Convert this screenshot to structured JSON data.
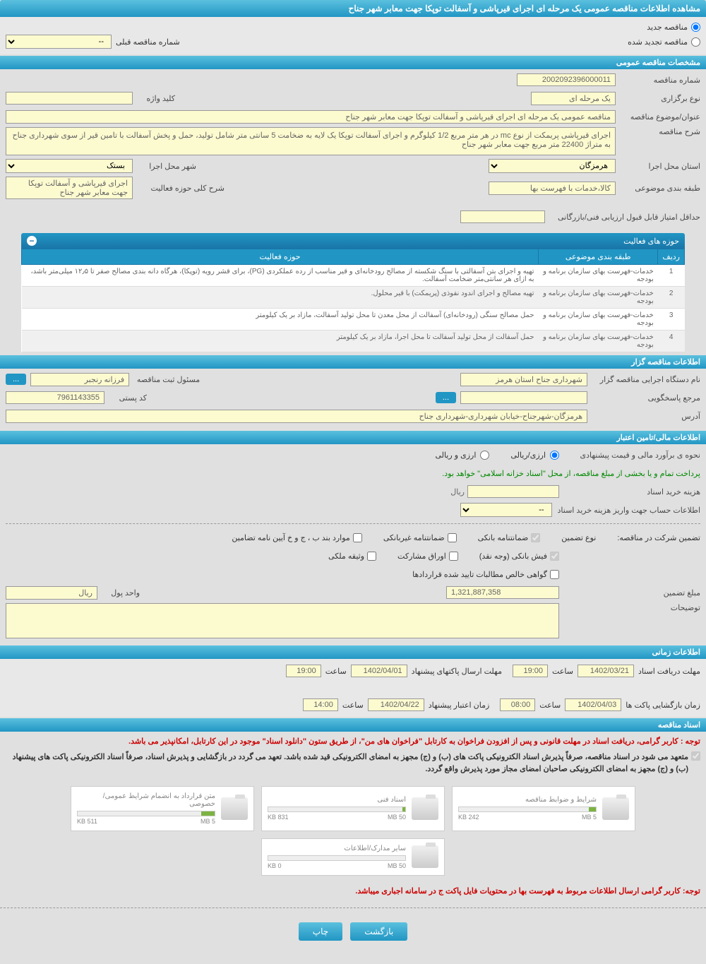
{
  "colors": {
    "header_bg": "#2196c4",
    "yellow_bg": "#fcfacf",
    "page_bg": "#e0e0e0",
    "red": "#cc0000"
  },
  "main_title": "مشاهده اطلاعات مناقصه عمومی یک مرحله ای اجرای قیرپاشی و آسفالت توپکا جهت معابر شهر جناح",
  "tender_type": {
    "new": "مناقصه جدید",
    "renewed": "مناقصه تجدید شده",
    "prev_number_label": "شماره مناقصه قبلی",
    "prev_number_value": "--"
  },
  "general_specs": {
    "header": "مشخصات مناقصه عمومی",
    "tender_number_label": "شماره مناقصه",
    "tender_number": "2002092396000011",
    "holding_type_label": "نوع برگزاری",
    "holding_type": "یک مرحله ای",
    "keyword_label": "کلید واژه",
    "keyword": "",
    "title_label": "عنوان/موضوع مناقصه",
    "title": "مناقصه عمومی یک مرحله ای اجرای قیرپاشی و آسفالت توپکا جهت معابر شهر جناح",
    "desc_label": "شرح مناقصه",
    "desc": "اجرای قیرپاشی پریمکت از نوع mc در هر متر مربع 1/2 کیلوگرم و اجرای آسفالت توپکا یک لایه به ضخامت 5 سانتی متر شامل تولید، حمل و پخش آسفالت با تامین قیر از سوی شهرداری جناح به متراژ 22400 متر مربع جهت معابر شهر جناح",
    "province_label": "استان محل اجرا",
    "province": "هرمزگان",
    "city_label": "شهر محل اجرا",
    "city": "بستک",
    "category_label": "طبقه بندی موضوعی",
    "category": "کالا،خدمات با فهرست بها",
    "activity_desc_label": "شرح کلی حوزه فعالیت",
    "activity_desc": "اجرای قیرپاشی و آسفالت توپکا جهت معابر شهر جناح",
    "min_score_label": "حداقل امتیاز قابل قبول ارزیابی فنی/بازرگانی",
    "min_score": ""
  },
  "activity_table": {
    "header": "حوزه های فعالیت",
    "columns": [
      "ردیف",
      "طبقه بندی موضوعی",
      "حوزه فعالیت"
    ],
    "rows": [
      [
        "1",
        "خدمات-فهرست بهای سازمان برنامه و بودجه",
        "تهیه و اجرای بتن آسفالتی با سنگ شکسته از مصالح رودخانه‌ای و قیر مناسب از رده عملکردی (PG)، برای قشر رویه (توپکا)، هرگاه دانه بندی مصالح صفر تا ۱۲٫۵ میلی‌متر باشد، به ازای هر سانتی‌متر ضخامت آسفالت."
      ],
      [
        "2",
        "خدمات-فهرست بهای سازمان برنامه و بودجه",
        "تهیه مصالح و اجرای اندود نفوذی (پریمکت) با قیر محلول."
      ],
      [
        "3",
        "خدمات-فهرست بهای سازمان برنامه و بودجه",
        "حمل مصالح سنگی (رودخانه‌ای) آسفالت از محل معدن تا محل تولید آسفالت، مازاد بر یک کیلومتر"
      ],
      [
        "4",
        "خدمات-فهرست بهای سازمان برنامه و بودجه",
        "حمل آسفالت از محل تولید آسفالت تا محل اجرا، مازاد بر یک کیلومتر"
      ]
    ]
  },
  "organizer": {
    "header": "اطلاعات مناقصه گزار",
    "org_label": "نام دستگاه اجرایی مناقصه گزار",
    "org": "شهرداری جناح استان هرمز",
    "manager_label": "مسئول ثبت مناقصه",
    "manager": "فرزانه رنجبر",
    "accountability_label": "مرجع پاسخگویی",
    "accountability": "",
    "postal_label": "کد پستی",
    "postal": "7961143355",
    "address_label": "آدرس",
    "address": "هرمزگان-شهرجناح-خیابان شهرداری-شهرداری جناح"
  },
  "financial": {
    "header": "اطلاعات مالی/تامین اعتبار",
    "estimate_label": "نحوه ی برآورد مالی و قیمت پیشنهادی",
    "riyal_option": "ارزی/ریالی",
    "currency_option": "ارزی و ریالی",
    "payment_note": "پرداخت تمام و یا بخشی از مبلغ مناقصه، از محل \"اسناد خزانه اسلامی\" خواهد بود.",
    "doc_cost_label": "هزینه خرید اسناد",
    "doc_cost": "",
    "doc_cost_unit": "ریال",
    "account_info_label": "اطلاعات حساب جهت واریز هزینه خرید اسناد",
    "account_info": "--",
    "guarantee_label": "تضمین شرکت در مناقصه:",
    "guarantee_type_label": "نوع تضمین",
    "bank_guarantee": "ضمانتنامه بانکی",
    "non_bank_guarantee": "ضمانتنامه غیربانکی",
    "regulations": "موارد بند ب ، ج و خ آیین نامه تضامین",
    "bank_check": "فیش بانکی (وجه نقد)",
    "participation_bonds": "اوراق مشارکت",
    "property_mortgage": "وثیقه ملکی",
    "net_receivables": "گواهی خالص مطالبات تایید شده قراردادها",
    "guarantee_amount_label": "مبلغ تضمین",
    "guarantee_amount": "1,321,887,358",
    "currency_unit_label": "واحد پول",
    "currency_unit": "ریال",
    "notes_label": "توضیحات",
    "notes": ""
  },
  "time_info": {
    "header": "اطلاعات زمانی",
    "doc_deadline_label": "مهلت دریافت اسناد",
    "doc_deadline_date": "1402/03/21",
    "doc_deadline_time_label": "ساعت",
    "doc_deadline_time": "19:00",
    "packet_deadline_label": "مهلت ارسال پاکتهای پیشنهاد",
    "packet_deadline_date": "1402/04/01",
    "packet_deadline_time": "19:00",
    "opening_label": "زمان بازگشایی پاکت ها",
    "opening_date": "1402/04/03",
    "opening_time": "08:00",
    "validity_label": "زمان اعتبار پیشنهاد",
    "validity_date": "1402/04/22",
    "validity_time": "14:00"
  },
  "documents": {
    "header": "اسناد مناقصه",
    "notice1": "توجه : کاربر گرامی، دریافت اسناد در مهلت قانونی و پس از افزودن فراخوان به کارتابل \"فراخوان های من\"، از طریق ستون \"دانلود اسناد\" موجود در این کارتابل، امکانپذیر می باشد.",
    "notice2": "متعهد می شود در اسناد مناقصه، صرفاً پذیرش اسناد الکترونیکی پاکت های (ب) و (ج) مجهز به امضای الکترونیکی قید شده باشد. تعهد می گردد در بازگشایی و پذیرش اسناد، صرفاً اسناد الکترونیکی پاکت های پیشنهاد (ب) و (ج) مجهز به امضای الکترونیکی صاحبان امضای مجاز مورد پذیرش واقع گردد.",
    "files": [
      {
        "title": "شرایط و ضوابط مناقصه",
        "size": "242 KB",
        "max": "5 MB",
        "fill": 5
      },
      {
        "title": "اسناد فنی",
        "size": "831 KB",
        "max": "50 MB",
        "fill": 2
      },
      {
        "title": "متن قرارداد به انضمام شرایط عمومی/خصوصی",
        "size": "511 KB",
        "max": "5 MB",
        "fill": 10
      },
      {
        "title": "سایر مدارک/اطلاعات",
        "size": "0 KB",
        "max": "50 MB",
        "fill": 0
      }
    ],
    "notice3": "توجه: کاربر گرامی ارسال اطلاعات مربوط به فهرست بها در محتویات فایل پاکت ج در سامانه اجباری میباشد."
  },
  "buttons": {
    "back": "بازگشت",
    "print": "چاپ"
  }
}
